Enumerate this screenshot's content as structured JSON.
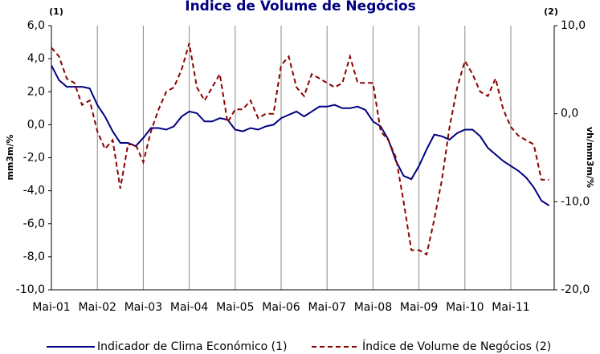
{
  "chart_data": {
    "type": "line",
    "title": "Índice de Volume de Negócios",
    "annotations": [
      "(1)",
      "(2)"
    ],
    "y_label": "mm3m/%",
    "y2_label": "vh/mm3m/%",
    "categories": [
      "Mai-01",
      null,
      null,
      null,
      null,
      null,
      "Mai-02",
      null,
      null,
      null,
      null,
      null,
      "Mai-03",
      null,
      null,
      null,
      null,
      null,
      "Mai-04",
      null,
      null,
      null,
      null,
      null,
      "Mai-05",
      null,
      null,
      null,
      null,
      null,
      "Mai-06",
      null,
      null,
      null,
      null,
      null,
      "Mai-07",
      null,
      null,
      null,
      null,
      null,
      "Mai-08",
      null,
      null,
      null,
      null,
      null,
      "Mai-09",
      null,
      null,
      null,
      null,
      null,
      "Mai-10",
      null,
      null,
      null,
      null,
      null,
      "Mai-11",
      null,
      null,
      null,
      null,
      null
    ],
    "series": [
      {
        "name": "Indicador de Clima Económico (1)",
        "color": "#000080",
        "axis": "y",
        "values": [
          3.6,
          2.7,
          2.3,
          2.3,
          2.3,
          2.2,
          1.2,
          0.5,
          -0.4,
          -1.1,
          -1.1,
          -1.3,
          -0.8,
          -0.2,
          -0.2,
          -0.3,
          -0.1,
          0.5,
          0.8,
          0.7,
          0.2,
          0.2,
          0.4,
          0.3,
          -0.3,
          -0.4,
          -0.2,
          -0.3,
          -0.1,
          0.0,
          0.4,
          0.6,
          0.8,
          0.5,
          0.8,
          1.1,
          1.1,
          1.2,
          1.0,
          1.0,
          1.1,
          0.9,
          0.2,
          -0.1,
          -0.9,
          -2.2,
          -3.1,
          -3.3,
          -2.5,
          -1.5,
          -0.6,
          -0.7,
          -0.9,
          -0.5,
          -0.3,
          -0.3,
          -0.7,
          -1.4,
          -1.8,
          -2.2,
          -2.5,
          -2.8,
          -3.2,
          -3.8,
          -4.6,
          -4.9
        ]
      },
      {
        "name": "Índice de Volume de Negócios (2)",
        "color": "#8b0000",
        "axis": "y2",
        "dashed": true,
        "values": [
          7.5,
          6.5,
          4,
          3.5,
          1,
          1.5,
          -2,
          -4,
          -3,
          -8.5,
          -3.5,
          -3.5,
          -5.5,
          -2,
          0.5,
          2.5,
          3,
          5,
          8,
          3,
          1.5,
          3,
          4.5,
          -1,
          0.5,
          0.5,
          1.5,
          -0.5,
          0,
          0,
          5.5,
          6.5,
          3,
          2,
          4.5,
          4,
          3.5,
          3,
          3.5,
          6.5,
          3.5,
          3.5,
          3.5,
          -2,
          -3,
          -5,
          -10,
          -15.5,
          -15.5,
          -16,
          -12,
          -7.5,
          -1.5,
          3,
          6,
          4.5,
          2.5,
          2,
          4,
          0.5,
          -1.5,
          -2.5,
          -3,
          -3.5,
          -7.5,
          -7.5
        ]
      }
    ],
    "ylim": [
      -10,
      6
    ],
    "yticks": [
      {
        "value": -10,
        "label": "-10,0"
      },
      {
        "value": -8,
        "label": "-8,0"
      },
      {
        "value": -6,
        "label": "-6,0"
      },
      {
        "value": -4,
        "label": "-4,0"
      },
      {
        "value": -2,
        "label": "-2,0"
      },
      {
        "value": 0,
        "label": "0,0"
      },
      {
        "value": 2,
        "label": "2,0"
      },
      {
        "value": 4,
        "label": "4,0"
      },
      {
        "value": 6,
        "label": "6,0"
      }
    ],
    "y2lim": [
      -20,
      10
    ],
    "y2ticks": [
      {
        "value": -20,
        "label": "-20,0"
      },
      {
        "value": -10,
        "label": "-10,0"
      },
      {
        "value": 0,
        "label": "0,0"
      },
      {
        "value": 10,
        "label": "10,0"
      }
    ],
    "legend": "bottom"
  }
}
